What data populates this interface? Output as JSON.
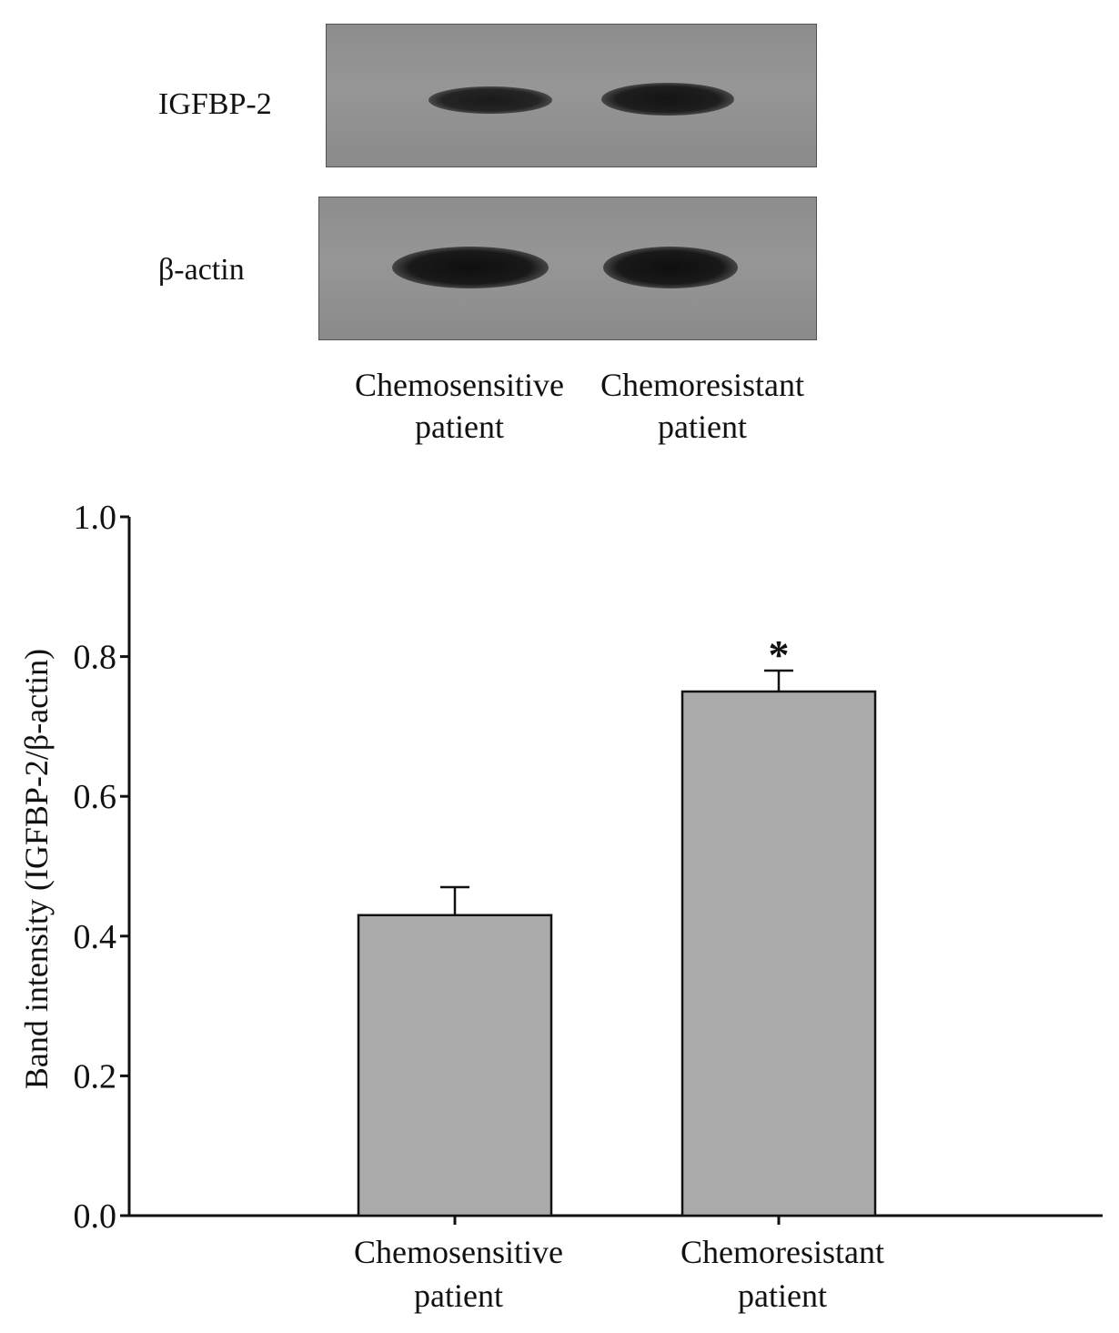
{
  "western_blot": {
    "rows": [
      {
        "label": "IGFBP-2",
        "band_intensity": [
          0.55,
          0.8
        ]
      },
      {
        "label": "β-actin",
        "band_intensity": [
          1.0,
          1.0
        ]
      }
    ],
    "lanes": [
      {
        "line1": "Chemosensitive",
        "line2": "patient"
      },
      {
        "line1": "Chemoresistant",
        "line2": "patient"
      }
    ]
  },
  "chart_data": {
    "type": "bar",
    "categories": [
      {
        "line1": "Chemosensitive",
        "line2": "patient"
      },
      {
        "line1": "Chemoresistant",
        "line2": "patient"
      }
    ],
    "values": [
      0.43,
      0.75
    ],
    "error_upper": [
      0.47,
      0.78
    ],
    "significance": [
      "",
      "*"
    ],
    "ylabel": "Band intensity (IGFBP-2/β-actin)",
    "ylim": [
      0.0,
      1.0
    ],
    "yticks": [
      "0.0",
      "0.2",
      "0.4",
      "0.6",
      "0.8",
      "1.0"
    ],
    "bar_color": "#aaaaaa",
    "grid": false
  }
}
